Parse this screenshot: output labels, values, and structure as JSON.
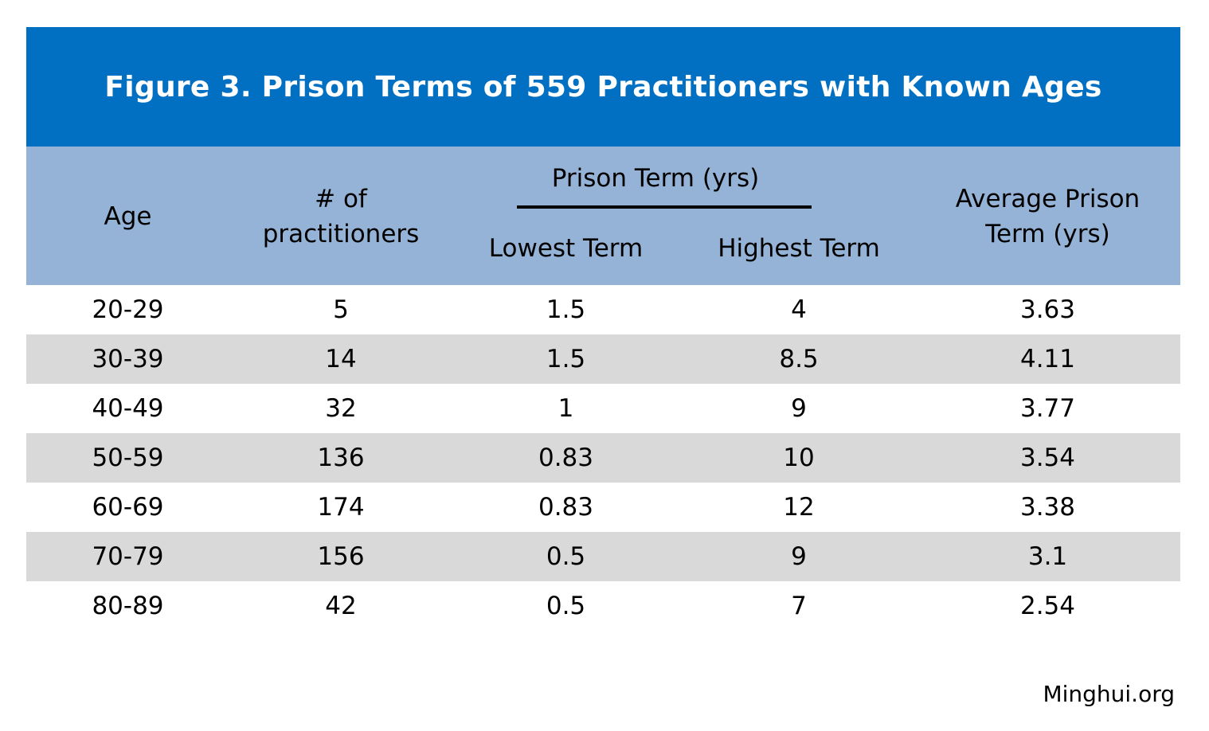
{
  "title": "Figure 3. Prison Terms of 559 Practitioners with Known Ages",
  "source": "Minghui.org",
  "colors": {
    "title_bar": "#0270c2",
    "header_band": "#95b3d7",
    "row_shade": "#d9d9d9"
  },
  "columns": {
    "age": "Age",
    "count_line1": "# of",
    "count_line2": "practitioners",
    "group": "Prison Term (yrs)",
    "lowest": "Lowest Term",
    "highest": "Highest Term",
    "avg_line1": "Average Prison",
    "avg_line2": "Term (yrs)"
  },
  "chart_data": {
    "type": "table",
    "title": "Figure 3. Prison Terms of 559 Practitioners with Known Ages",
    "headers": [
      "Age",
      "# of practitioners",
      "Lowest Term",
      "Highest Term",
      "Average Prison Term (yrs)"
    ],
    "group_header": "Prison Term (yrs)",
    "rows": [
      [
        "20-29",
        "5",
        "1.5",
        "4",
        "3.63"
      ],
      [
        "30-39",
        "14",
        "1.5",
        "8.5",
        "4.11"
      ],
      [
        "40-49",
        "32",
        "1",
        "9",
        "3.77"
      ],
      [
        "50-59",
        "136",
        "0.83",
        "10",
        "3.54"
      ],
      [
        "60-69",
        "174",
        "0.83",
        "12",
        "3.38"
      ],
      [
        "70-79",
        "156",
        "0.5",
        "9",
        "3.1"
      ],
      [
        "80-89",
        "42",
        "0.5",
        "7",
        "2.54"
      ]
    ]
  }
}
